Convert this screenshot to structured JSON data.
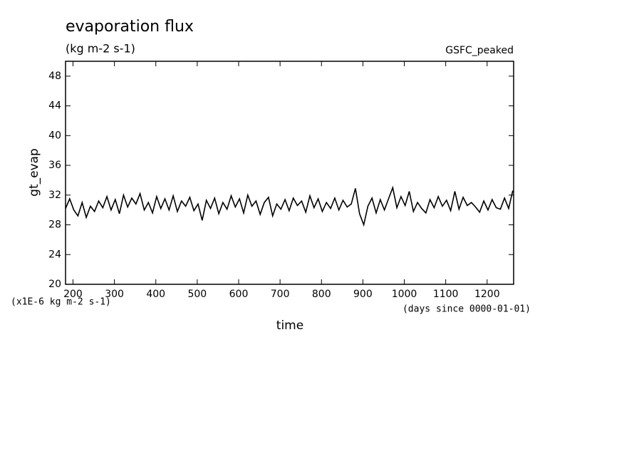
{
  "chart_data": {
    "type": "line",
    "title": "evaporation flux",
    "subtitle": "(kg m-2 s-1)",
    "annotation": "GSFC_peaked",
    "y_label": "gt_evap",
    "x_label": "time",
    "y_units": "(x1E-6 kg m-2 s-1)",
    "x_units": "(days since 0000-01-01)",
    "x": [
      182,
      192,
      202,
      212,
      222,
      232,
      242,
      252,
      262,
      272,
      282,
      292,
      302,
      312,
      322,
      332,
      342,
      352,
      362,
      372,
      382,
      392,
      402,
      412,
      422,
      432,
      442,
      452,
      462,
      472,
      482,
      492,
      502,
      512,
      522,
      532,
      542,
      552,
      562,
      572,
      582,
      592,
      602,
      612,
      622,
      632,
      642,
      652,
      662,
      672,
      682,
      692,
      702,
      712,
      722,
      732,
      742,
      752,
      762,
      772,
      782,
      792,
      802,
      812,
      822,
      832,
      842,
      852,
      862,
      872,
      882,
      892,
      902,
      912,
      922,
      932,
      942,
      952,
      962,
      972,
      982,
      992,
      1002,
      1012,
      1022,
      1032,
      1042,
      1052,
      1062,
      1072,
      1082,
      1092,
      1102,
      1112,
      1122,
      1132,
      1142,
      1152,
      1162,
      1172,
      1182,
      1192,
      1202,
      1212,
      1222,
      1232,
      1242,
      1252,
      1262
    ],
    "series": [
      {
        "color": "#000000",
        "values": [
          30.2,
          31.5,
          30.0,
          29.2,
          31.0,
          29.0,
          30.5,
          29.8,
          31.2,
          30.3,
          31.8,
          30.0,
          31.4,
          29.5,
          32.0,
          30.4,
          31.6,
          30.8,
          32.2,
          30.0,
          31.0,
          29.6,
          31.8,
          30.2,
          31.5,
          30.0,
          31.9,
          29.8,
          31.2,
          30.5,
          31.7,
          29.9,
          30.8,
          28.6,
          31.3,
          30.2,
          31.6,
          29.5,
          31.0,
          30.1,
          31.9,
          30.4,
          31.5,
          29.6,
          32.0,
          30.5,
          31.2,
          29.4,
          31.0,
          31.7,
          29.2,
          30.8,
          30.1,
          31.4,
          29.9,
          31.6,
          30.6,
          31.2,
          29.7,
          31.9,
          30.3,
          31.5,
          29.8,
          31.0,
          30.2,
          31.6,
          30.0,
          31.3,
          30.4,
          30.8,
          32.9,
          29.5,
          28.0,
          30.5,
          31.6,
          29.6,
          31.4,
          30.0,
          31.5,
          33.0,
          30.3,
          31.8,
          30.6,
          32.5,
          29.8,
          31.0,
          30.2,
          29.6,
          31.4,
          30.3,
          31.8,
          30.5,
          31.3,
          29.9,
          32.5,
          30.1,
          31.7,
          30.6,
          31.0,
          30.4,
          29.7,
          31.2,
          30.0,
          31.4,
          30.3,
          30.1,
          31.6,
          30.2,
          32.6
        ]
      }
    ],
    "xlim": [
      182,
      1264
    ],
    "ylim": [
      20,
      50
    ],
    "xticks": [
      200,
      300,
      400,
      500,
      600,
      700,
      800,
      900,
      1000,
      1100,
      1200
    ],
    "yticks": [
      20,
      24,
      28,
      32,
      36,
      40,
      44,
      48
    ]
  }
}
